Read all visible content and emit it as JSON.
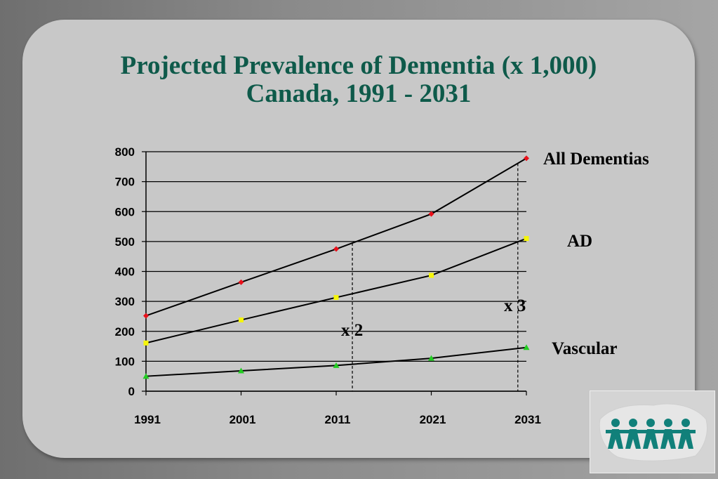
{
  "title": {
    "line1": "Projected Prevalence of Dementia (x 1,000)",
    "line2": "Canada, 1991 - 2031"
  },
  "chart_data": {
    "type": "line",
    "x": [
      1991,
      2001,
      2011,
      2021,
      2031
    ],
    "ylim": [
      0,
      800
    ],
    "yticks": [
      0,
      100,
      200,
      300,
      400,
      500,
      600,
      700,
      800
    ],
    "grid": "horizontal",
    "series": [
      {
        "name": "All Dementias",
        "values": [
          252,
          364,
          475,
          592,
          778
        ],
        "color": "#e8101a",
        "marker": "diamond"
      },
      {
        "name": "AD",
        "values": [
          161,
          238,
          313,
          387,
          510
        ],
        "color": "#f5f50a",
        "marker": "square"
      },
      {
        "name": "Vascular",
        "values": [
          50,
          68,
          86,
          110,
          146
        ],
        "color": "#22cc22",
        "marker": "triangle"
      }
    ],
    "annotations": [
      {
        "text": "x 2",
        "x": 2012.7
      },
      {
        "text": "x 3",
        "x": 2030.1
      }
    ]
  },
  "logo": {
    "icon": "people-holding-hands-over-canada-map-icon",
    "color": "#11807a"
  }
}
